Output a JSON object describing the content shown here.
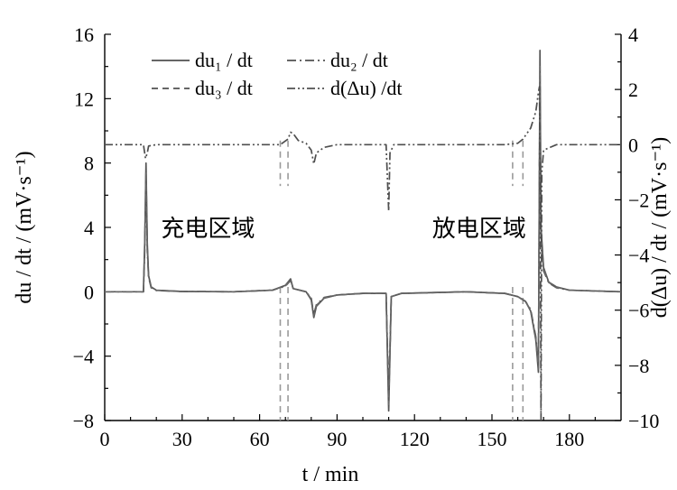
{
  "chart_data": {
    "type": "line",
    "xlabel": "t / min",
    "ylabel_left": "du / dt / (mV·s⁻¹)",
    "ylabel_right": "d(Δu) / dt / (mV·s⁻¹)",
    "xlim": [
      0,
      200
    ],
    "ylim_left": [
      -8,
      16
    ],
    "ylim_right": [
      -10,
      4
    ],
    "x_ticks": [
      0,
      30,
      60,
      90,
      120,
      150,
      180
    ],
    "y_left_ticks": [
      -8,
      -4,
      0,
      4,
      8,
      12,
      16
    ],
    "y_right_ticks": [
      -10,
      -8,
      -6,
      -4,
      -2,
      0,
      2,
      4
    ],
    "grid": false,
    "legend_placement": "top-left",
    "legend": [
      {
        "label": "du₁ / dt",
        "style": "solid"
      },
      {
        "label": "du₂ / dt",
        "style": "dash-dot"
      },
      {
        "label": "du₃ / dt",
        "style": "dashed"
      },
      {
        "label": "d(Δu) /dt",
        "style": "dash-dot-dot"
      }
    ],
    "annotations": [
      {
        "text": "充电区域",
        "x": 40,
        "y": 4
      },
      {
        "text": "放电区域",
        "x": 145,
        "y": 4
      }
    ],
    "vertical_markers": [
      68,
      71,
      158,
      162
    ],
    "series": [
      {
        "name": "du₁ / dt",
        "axis": "left",
        "points": [
          [
            0,
            0
          ],
          [
            15,
            0
          ],
          [
            15.5,
            3
          ],
          [
            16,
            8
          ],
          [
            16.5,
            3
          ],
          [
            17,
            1
          ],
          [
            18,
            0.3
          ],
          [
            20,
            0.1
          ],
          [
            30,
            0.02
          ],
          [
            50,
            0
          ],
          [
            65,
            0.1
          ],
          [
            70,
            0.4
          ],
          [
            72,
            0.8
          ],
          [
            73,
            0.2
          ],
          [
            78,
            0
          ],
          [
            80,
            -0.5
          ],
          [
            81,
            -1.6
          ],
          [
            82,
            -0.9
          ],
          [
            85,
            -0.4
          ],
          [
            90,
            -0.2
          ],
          [
            100,
            -0.1
          ],
          [
            109,
            -0.1
          ],
          [
            110,
            -7.4
          ],
          [
            111,
            -0.3
          ],
          [
            115,
            -0.1
          ],
          [
            140,
            0
          ],
          [
            155,
            -0.1
          ],
          [
            160,
            -0.3
          ],
          [
            163,
            -0.6
          ],
          [
            165,
            -1.2
          ],
          [
            167,
            -3
          ],
          [
            168,
            -5
          ],
          [
            168.6,
            15
          ],
          [
            169,
            4
          ],
          [
            170,
            1.5
          ],
          [
            172,
            0.6
          ],
          [
            175,
            0.3
          ],
          [
            180,
            0.1
          ],
          [
            190,
            0.05
          ],
          [
            200,
            0
          ]
        ]
      },
      {
        "name": "du₂ / dt",
        "axis": "left",
        "points": [
          [
            0,
            0
          ],
          [
            15,
            0
          ],
          [
            15.5,
            2.5
          ],
          [
            16,
            7
          ],
          [
            16.5,
            2.5
          ],
          [
            17,
            0.9
          ],
          [
            18,
            0.25
          ],
          [
            20,
            0.08
          ],
          [
            30,
            0.02
          ],
          [
            50,
            0
          ],
          [
            65,
            0.1
          ],
          [
            70,
            0.35
          ],
          [
            72,
            0.7
          ],
          [
            73,
            0.2
          ],
          [
            78,
            0
          ],
          [
            80,
            -0.4
          ],
          [
            81,
            -1.4
          ],
          [
            82,
            -0.8
          ],
          [
            85,
            -0.35
          ],
          [
            90,
            -0.2
          ],
          [
            100,
            -0.1
          ],
          [
            109,
            -0.1
          ],
          [
            110,
            -6.5
          ],
          [
            111,
            -0.3
          ],
          [
            115,
            -0.1
          ],
          [
            140,
            0
          ],
          [
            155,
            -0.1
          ],
          [
            160,
            -0.3
          ],
          [
            163,
            -0.6
          ],
          [
            165,
            -1.1
          ],
          [
            167,
            -2.8
          ],
          [
            168,
            -4.6
          ],
          [
            168.6,
            13
          ],
          [
            169,
            3.5
          ],
          [
            170,
            1.3
          ],
          [
            172,
            0.55
          ],
          [
            175,
            0.25
          ],
          [
            180,
            0.1
          ],
          [
            190,
            0.05
          ],
          [
            200,
            0
          ]
        ]
      },
      {
        "name": "du₃ / dt",
        "axis": "left",
        "points": [
          [
            0,
            0
          ],
          [
            15,
            0
          ],
          [
            15.5,
            2.8
          ],
          [
            16,
            7.5
          ],
          [
            16.5,
            2.8
          ],
          [
            17,
            1
          ],
          [
            18,
            0.28
          ],
          [
            20,
            0.09
          ],
          [
            30,
            0.02
          ],
          [
            50,
            0
          ],
          [
            65,
            0.1
          ],
          [
            70,
            0.38
          ],
          [
            72,
            0.75
          ],
          [
            73,
            0.2
          ],
          [
            78,
            0
          ],
          [
            80,
            -0.45
          ],
          [
            81,
            -1.5
          ],
          [
            82,
            -0.85
          ],
          [
            85,
            -0.38
          ],
          [
            90,
            -0.2
          ],
          [
            100,
            -0.1
          ],
          [
            109,
            -0.1
          ],
          [
            110,
            -7
          ],
          [
            111,
            -0.3
          ],
          [
            115,
            -0.1
          ],
          [
            140,
            0
          ],
          [
            155,
            -0.1
          ],
          [
            160,
            -0.3
          ],
          [
            163,
            -0.6
          ],
          [
            165,
            -1.15
          ],
          [
            167,
            -2.9
          ],
          [
            168,
            -4.8
          ],
          [
            168.6,
            14
          ],
          [
            169,
            3.8
          ],
          [
            170,
            1.4
          ],
          [
            172,
            0.58
          ],
          [
            175,
            0.28
          ],
          [
            180,
            0.1
          ],
          [
            190,
            0.05
          ],
          [
            200,
            0
          ]
        ]
      },
      {
        "name": "d(Δu) /dt",
        "axis": "right",
        "points": [
          [
            0,
            0
          ],
          [
            15,
            0
          ],
          [
            15.8,
            -0.5
          ],
          [
            16.5,
            -0.3
          ],
          [
            17,
            -0.05
          ],
          [
            20,
            0
          ],
          [
            60,
            0
          ],
          [
            68,
            0
          ],
          [
            71,
            0.2
          ],
          [
            72,
            0.45
          ],
          [
            73,
            0.4
          ],
          [
            75,
            0.15
          ],
          [
            78,
            0.05
          ],
          [
            80,
            -0.2
          ],
          [
            81,
            -0.7
          ],
          [
            82,
            -0.3
          ],
          [
            85,
            -0.1
          ],
          [
            90,
            0
          ],
          [
            109,
            0
          ],
          [
            110,
            -2.4
          ],
          [
            110.5,
            -0.3
          ],
          [
            112,
            0
          ],
          [
            155,
            0
          ],
          [
            160,
            0.05
          ],
          [
            162,
            0.2
          ],
          [
            165,
            0.6
          ],
          [
            167,
            1.2
          ],
          [
            168,
            1.9
          ],
          [
            168.4,
            2.1
          ],
          [
            168.8,
            -4
          ],
          [
            169,
            -10
          ],
          [
            169.3,
            -1
          ],
          [
            170,
            -0.2
          ],
          [
            175,
            0
          ],
          [
            200,
            0
          ]
        ]
      }
    ]
  }
}
